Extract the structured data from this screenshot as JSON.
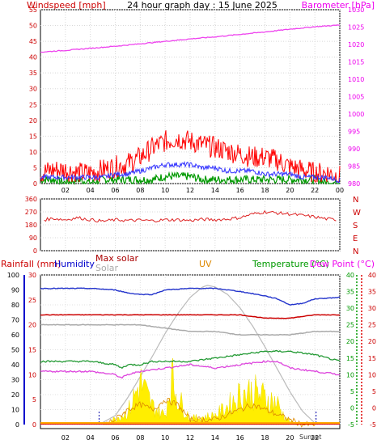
{
  "header": {
    "left_title": "Windspeed [mph]",
    "center_title": "24 hour graph day : 15 June 2025",
    "right_title": "Barometer [hPa]"
  },
  "panel3_labels": {
    "rain": "Rainfall (mm)",
    "humidity": "Humidity",
    "max_solar": "Max solar",
    "solar": "Solar",
    "uv": "UV",
    "temperature": "Temperature (°C)",
    "dew_point": "Dew Point (°C)"
  },
  "markers": {
    "sunrise": "Sunrise",
    "sunset": "Sunset"
  },
  "colors": {
    "wind_max": "#ff0000",
    "wind_avg": "#3333ff",
    "wind_low": "#009900",
    "barometer": "#ee44ee",
    "direction": "#dd2222",
    "humidity": "#2233cc",
    "temperature": "#229933",
    "dew_point": "#dd44dd",
    "max_solar": "#bbbbbb",
    "solar": "#cccccc",
    "uv": "#ffee00",
    "rain": "#dd0000",
    "rain_axis": "#0000cc",
    "temp_axis": "#009900",
    "dew_axis": "#dd0000",
    "title_left": "#cc0000",
    "title_right": "#ee00ee"
  },
  "chart_data": [
    {
      "type": "line",
      "name": "wind_and_pressure",
      "x_unit": "hour",
      "x_ticks": [
        "02",
        "04",
        "06",
        "08",
        "10",
        "12",
        "14",
        "16",
        "18",
        "20",
        "22",
        "00"
      ],
      "left_axis": {
        "label": "Windspeed [mph]",
        "range": [
          0,
          55
        ],
        "ticks": [
          0,
          5,
          10,
          15,
          20,
          25,
          30,
          35,
          40,
          45,
          50,
          55
        ]
      },
      "right_axis": {
        "label": "Barometer [hPa]",
        "range": [
          980,
          1030
        ],
        "ticks": [
          980,
          985,
          990,
          995,
          1000,
          1005,
          1010,
          1015,
          1020,
          1025,
          1030
        ]
      },
      "grid": true,
      "series": [
        {
          "key": "wind_max",
          "axis": "left",
          "x": [
            0,
            1,
            2,
            3,
            4,
            5,
            6,
            7,
            8,
            9,
            10,
            11,
            12,
            13,
            14,
            15,
            16,
            17,
            18,
            19,
            20,
            21,
            22,
            23,
            24
          ],
          "y": [
            3,
            4,
            4,
            3,
            3,
            4,
            5,
            6,
            8,
            11,
            13,
            14,
            13,
            12,
            11,
            10,
            9,
            8,
            8,
            7,
            5,
            4,
            3,
            3,
            2
          ]
        },
        {
          "key": "wind_avg",
          "axis": "left",
          "x": [
            0,
            1,
            2,
            3,
            4,
            5,
            6,
            7,
            8,
            9,
            10,
            11,
            12,
            13,
            14,
            15,
            16,
            17,
            18,
            19,
            20,
            21,
            22,
            23,
            24
          ],
          "y": [
            2,
            2,
            2,
            2,
            2,
            2,
            3,
            3,
            4,
            5,
            6,
            6,
            6,
            5,
            5,
            4,
            4,
            4,
            3,
            3,
            3,
            2,
            2,
            2,
            1
          ]
        },
        {
          "key": "wind_low",
          "axis": "left",
          "x": [
            0,
            1,
            2,
            3,
            4,
            5,
            6,
            7,
            8,
            9,
            10,
            11,
            12,
            13,
            14,
            15,
            16,
            17,
            18,
            19,
            20,
            21,
            22,
            23,
            24
          ],
          "y": [
            1,
            1,
            0,
            1,
            0,
            1,
            1,
            1,
            1,
            1,
            2,
            2,
            2,
            1,
            1,
            1,
            1,
            1,
            1,
            1,
            1,
            1,
            1,
            0,
            0
          ]
        },
        {
          "key": "barometer",
          "axis": "right",
          "x": [
            0,
            2,
            4,
            6,
            8,
            10,
            12,
            14,
            16,
            18,
            20,
            22,
            24
          ],
          "y": [
            1017.8,
            1018.3,
            1018.9,
            1019.5,
            1020.2,
            1020.9,
            1021.6,
            1022.2,
            1022.9,
            1023.6,
            1024.4,
            1025.1,
            1025.6
          ]
        }
      ]
    },
    {
      "type": "line",
      "name": "wind_direction",
      "x_ticks": [
        "02",
        "04",
        "06",
        "08",
        "10",
        "12",
        "14",
        "16",
        "18",
        "20",
        "22",
        "00"
      ],
      "y_axis": {
        "range": [
          0,
          360
        ],
        "ticks": [
          0,
          90,
          180,
          270,
          360
        ]
      },
      "direction_labels": [
        "N",
        "W",
        "S",
        "E",
        "N"
      ],
      "grid": true,
      "series": [
        {
          "key": "direction",
          "x": [
            0,
            1,
            2,
            3,
            4,
            5,
            6,
            7,
            8,
            9,
            10,
            11,
            12,
            13,
            14,
            15,
            16,
            17,
            18,
            19,
            20,
            21,
            22,
            23,
            24
          ],
          "y": [
            210,
            225,
            215,
            230,
            215,
            205,
            215,
            210,
            212,
            208,
            215,
            215,
            210,
            218,
            215,
            220,
            230,
            255,
            270,
            262,
            255,
            245,
            235,
            220,
            215
          ]
        }
      ]
    },
    {
      "type": "line",
      "name": "temperature_humidity_solar",
      "x_ticks": [
        "02",
        "04",
        "06",
        "08",
        "10",
        "12",
        "14",
        "16",
        "18",
        "20",
        "22",
        "00"
      ],
      "rain_axis": {
        "label": "Rainfall (mm)",
        "range": [
          0,
          30
        ],
        "ticks": [
          0,
          5,
          10,
          15,
          20,
          25,
          30
        ]
      },
      "humidity_axis": {
        "label": "Humidity",
        "range": [
          0,
          100
        ],
        "ticks": [
          0,
          10,
          20,
          30,
          40,
          50,
          60,
          70,
          80,
          90,
          100
        ]
      },
      "temperature_axis": {
        "label": "Temperature (°C)",
        "range": [
          -5,
          40
        ],
        "ticks": [
          -5,
          0,
          5,
          10,
          15,
          20,
          25,
          30,
          35,
          40
        ]
      },
      "dew_point_axis": {
        "label": "Dew Point (°C)",
        "range": [
          -5,
          40
        ],
        "ticks": [
          -5,
          0,
          5,
          10,
          15,
          20,
          25,
          30,
          35,
          40
        ]
      },
      "grid": true,
      "series": [
        {
          "key": "humidity",
          "axis": "humidity",
          "x": [
            0,
            2,
            4,
            6,
            7,
            8,
            9,
            10,
            12,
            14,
            16,
            18,
            19,
            20,
            21,
            22,
            24
          ],
          "y": [
            91,
            91,
            91,
            90,
            88,
            87,
            87,
            90,
            91,
            91,
            89,
            86,
            84,
            80,
            81,
            84,
            85
          ]
        },
        {
          "key": "max_solar",
          "axis": "temperature",
          "x": [
            0,
            4,
            6,
            8,
            10,
            12,
            14,
            16,
            18,
            20,
            22,
            24
          ],
          "y": [
            25,
            25,
            25,
            25,
            24,
            23,
            23,
            22,
            22,
            22,
            23,
            23
          ]
        },
        {
          "key": "temperature_line",
          "axis": "temperature",
          "x": [
            0,
            2,
            4,
            6,
            7,
            8,
            10,
            12,
            14,
            16,
            18,
            19,
            20,
            22,
            24
          ],
          "y": [
            28,
            28,
            28,
            28,
            28,
            28,
            28,
            28,
            28,
            28,
            27,
            27,
            27,
            28,
            28
          ]
        },
        {
          "key": "temperature",
          "axis": "temperature",
          "x": [
            0,
            2,
            4,
            6,
            6.5,
            7,
            8,
            9,
            10,
            12,
            14,
            16,
            18,
            19,
            20,
            22,
            24
          ],
          "y": [
            14,
            14,
            14,
            13,
            12,
            13,
            13,
            14,
            14,
            14,
            15,
            16,
            17,
            17,
            17,
            16,
            14
          ]
        },
        {
          "key": "dew_point",
          "axis": "dew_point",
          "x": [
            0,
            2,
            4,
            6,
            6.5,
            7,
            8,
            10,
            12,
            14,
            16,
            18,
            19,
            20,
            22,
            24
          ],
          "y": [
            11,
            11,
            11,
            10,
            9,
            10,
            11,
            12,
            13,
            12,
            13,
            14,
            14,
            12,
            11,
            10
          ]
        },
        {
          "key": "max_solar_curve",
          "axis": "solar",
          "x": [
            4.7,
            6,
            7,
            8,
            9,
            10,
            11,
            12,
            13,
            13.4,
            14,
            15,
            16,
            17,
            18,
            19,
            20,
            21,
            22,
            22.1
          ],
          "y": [
            0,
            6,
            18,
            32,
            46,
            61,
            74,
            85,
            92,
            93,
            92,
            87,
            78,
            66,
            52,
            37,
            22,
            9,
            1,
            0
          ]
        },
        {
          "key": "solar",
          "axis": "solar",
          "x": [
            5,
            6,
            7,
            8,
            9,
            10,
            10.5,
            11,
            12,
            13,
            14,
            15,
            16,
            17,
            18,
            19,
            19.5,
            20,
            21,
            22
          ],
          "y": [
            0,
            4,
            8,
            28,
            12,
            6,
            32,
            18,
            4,
            5,
            6,
            12,
            20,
            22,
            18,
            14,
            6,
            2,
            0,
            0
          ]
        },
        {
          "key": "uv",
          "axis": "rain",
          "x": [
            5,
            6,
            7,
            8,
            9,
            10,
            11,
            12,
            13,
            14,
            15,
            16,
            17,
            18,
            19,
            20,
            21,
            22
          ],
          "y": [
            0,
            1,
            3,
            4,
            3,
            5,
            4,
            1,
            1,
            1,
            2,
            3,
            4,
            3,
            2,
            1,
            0,
            0
          ]
        },
        {
          "key": "rain",
          "axis": "rain",
          "x": [
            0,
            24
          ],
          "y": [
            0,
            0
          ]
        }
      ],
      "sunrise_hour": 4.7,
      "sunset_hour": 22.1
    }
  ]
}
